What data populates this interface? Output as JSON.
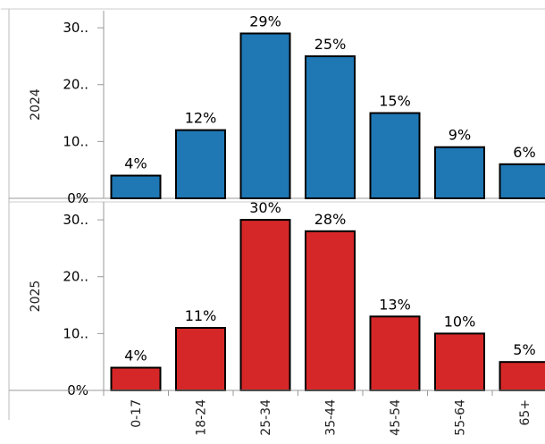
{
  "chart_data": {
    "type": "bar",
    "categories": [
      "0-17",
      "18-24",
      "25-34",
      "35-44",
      "45-54",
      "55-64",
      "65+"
    ],
    "ylim": [
      0,
      33
    ],
    "y_ticks": [
      {
        "value": 0,
        "label": "0%"
      },
      {
        "value": 10,
        "label": "10.."
      },
      {
        "value": 20,
        "label": "20.."
      },
      {
        "value": 30,
        "label": "30.."
      }
    ],
    "grid": false,
    "facets": [
      {
        "label": "2024",
        "color": "#1f77b4",
        "values": [
          4,
          12,
          29,
          25,
          15,
          9,
          6
        ],
        "value_labels": [
          "4%",
          "12%",
          "29%",
          "25%",
          "15%",
          "9%",
          "6%"
        ]
      },
      {
        "label": "2025",
        "color": "#d62728",
        "values": [
          4,
          11,
          30,
          28,
          13,
          10,
          5
        ],
        "value_labels": [
          "4%",
          "11%",
          "30%",
          "28%",
          "13%",
          "10%",
          "5%"
        ]
      }
    ]
  }
}
